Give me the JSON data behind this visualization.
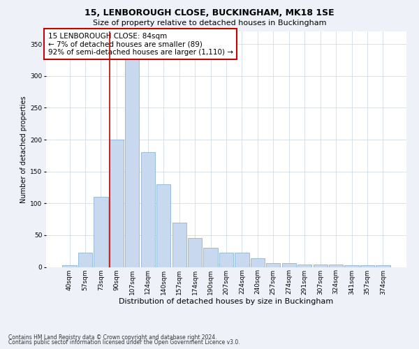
{
  "title": "15, LENBOROUGH CLOSE, BUCKINGHAM, MK18 1SE",
  "subtitle": "Size of property relative to detached houses in Buckingham",
  "xlabel": "Distribution of detached houses by size in Buckingham",
  "ylabel": "Number of detached properties",
  "categories": [
    "40sqm",
    "57sqm",
    "73sqm",
    "90sqm",
    "107sqm",
    "124sqm",
    "140sqm",
    "157sqm",
    "174sqm",
    "190sqm",
    "207sqm",
    "224sqm",
    "240sqm",
    "257sqm",
    "274sqm",
    "291sqm",
    "307sqm",
    "324sqm",
    "341sqm",
    "357sqm",
    "374sqm"
  ],
  "values": [
    3,
    22,
    110,
    200,
    330,
    180,
    130,
    70,
    45,
    30,
    22,
    22,
    14,
    6,
    6,
    4,
    4,
    4,
    3,
    3,
    3
  ],
  "bar_color": "#c8d8ee",
  "bar_edge_color": "#7da8d0",
  "vline_x_index": 3,
  "vline_color": "#cc0000",
  "annotation_text": "15 LENBOROUGH CLOSE: 84sqm\n← 7% of detached houses are smaller (89)\n92% of semi-detached houses are larger (1,110) →",
  "annotation_box_color": "#ffffff",
  "annotation_box_edge": "#cc0000",
  "footer_line1": "Contains HM Land Registry data © Crown copyright and database right 2024.",
  "footer_line2": "Contains public sector information licensed under the Open Government Licence v3.0.",
  "ylim": [
    0,
    370
  ],
  "yticks": [
    0,
    50,
    100,
    150,
    200,
    250,
    300,
    350
  ],
  "title_fontsize": 9,
  "subtitle_fontsize": 8,
  "xlabel_fontsize": 8,
  "ylabel_fontsize": 7,
  "tick_fontsize": 6.5,
  "annotation_fontsize": 7.5,
  "footer_fontsize": 5.5,
  "background_color": "#eef2f8",
  "plot_bg_color": "#ffffff",
  "grid_color": "#c8d4e4"
}
